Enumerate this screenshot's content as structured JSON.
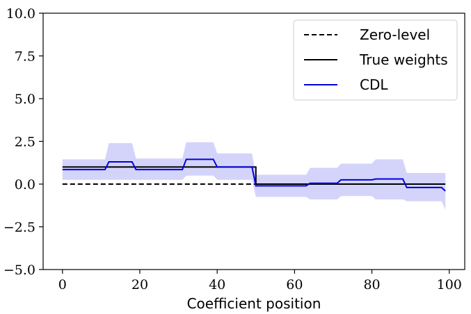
{
  "chart_data": {
    "type": "line",
    "title": "",
    "xlabel": "Coefficient position",
    "ylabel": "",
    "xlim": [
      -5,
      104
    ],
    "ylim": [
      -5.0,
      10.0
    ],
    "xticks": [
      0,
      20,
      40,
      60,
      80,
      100
    ],
    "xtick_labels": [
      "0",
      "20",
      "40",
      "60",
      "80",
      "100"
    ],
    "yticks": [
      -5.0,
      -2.5,
      0.0,
      2.5,
      5.0,
      7.5,
      10.0
    ],
    "ytick_labels": [
      "−5.0",
      "−2.5",
      "0.0",
      "2.5",
      "5.0",
      "7.5",
      "10.0"
    ],
    "grid": false,
    "legend_position": "top-right",
    "colors": {
      "cdl": "#0000dd",
      "band": "#d4d4fb",
      "true": "#000000",
      "zero": "#000000"
    },
    "series": [
      {
        "name": "Zero-level",
        "style": "dashed",
        "color": "#000000",
        "x": [
          0,
          50
        ],
        "y": [
          0.0,
          0.0
        ]
      },
      {
        "name": "True weights",
        "style": "solid",
        "color": "#000000",
        "x": [
          0,
          50,
          50,
          99
        ],
        "y": [
          1.0,
          1.0,
          0.0,
          0.0
        ]
      },
      {
        "name": "CDL",
        "style": "solid",
        "color": "#0000dd",
        "x": [
          0,
          11,
          12,
          18,
          19,
          31,
          32,
          39,
          40,
          49,
          50,
          63,
          64,
          71,
          72,
          80,
          81,
          88,
          89,
          98,
          99
        ],
        "y": [
          0.85,
          0.85,
          1.3,
          1.3,
          0.85,
          0.85,
          1.45,
          1.45,
          1.0,
          1.0,
          -0.1,
          -0.1,
          0.05,
          0.05,
          0.25,
          0.25,
          0.3,
          0.3,
          -0.2,
          -0.2,
          -0.4
        ]
      }
    ],
    "band": {
      "of": "CDL",
      "x": [
        0,
        11,
        12,
        18,
        19,
        31,
        32,
        39,
        40,
        49,
        50,
        63,
        64,
        71,
        72,
        80,
        81,
        88,
        89,
        98,
        99
      ],
      "upper": [
        1.45,
        1.45,
        2.4,
        2.4,
        1.5,
        1.5,
        2.45,
        2.45,
        1.8,
        1.8,
        0.55,
        0.55,
        0.95,
        0.95,
        1.2,
        1.2,
        1.45,
        1.45,
        0.65,
        0.65,
        0.65
      ],
      "lower": [
        0.25,
        0.25,
        0.25,
        0.25,
        0.25,
        0.25,
        0.5,
        0.5,
        0.25,
        0.25,
        -0.75,
        -0.75,
        -0.9,
        -0.9,
        -0.7,
        -0.7,
        -0.9,
        -0.9,
        -1.0,
        -1.0,
        -1.5
      ]
    }
  }
}
